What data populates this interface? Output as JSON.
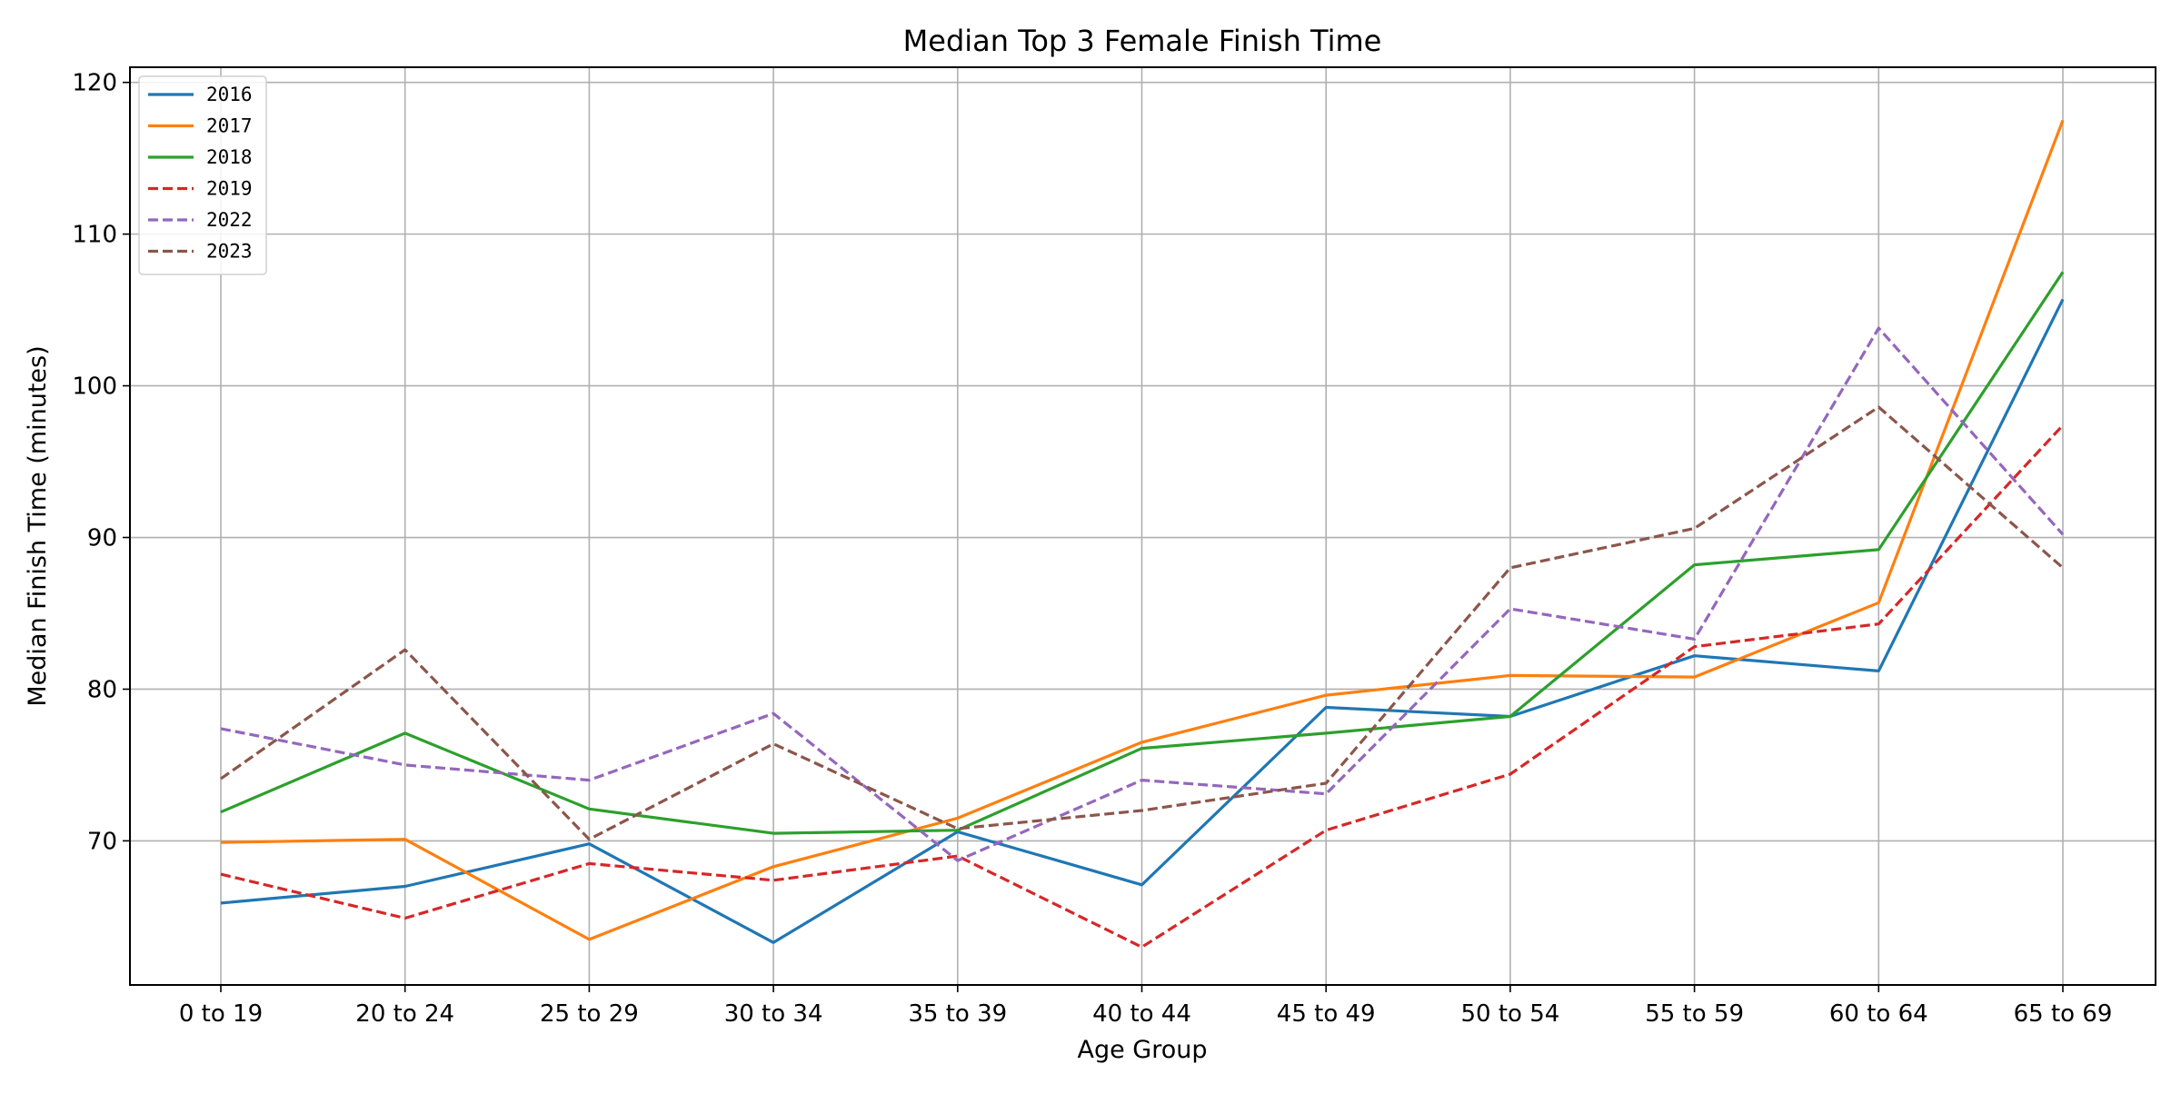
{
  "chart_data": {
    "type": "line",
    "title": "Median Top 3 Female Finish Time",
    "xlabel": "Age Group",
    "ylabel": "Median Finish Time (minutes)",
    "categories": [
      "0 to 19",
      "20 to 24",
      "25 to 29",
      "30 to 34",
      "35 to 39",
      "40 to 44",
      "45 to 49",
      "50 to 54",
      "55 to 59",
      "60 to 64",
      "65 to 69"
    ],
    "ylim": [
      60.5,
      121
    ],
    "yticks": [
      70,
      80,
      90,
      100,
      110,
      120
    ],
    "grid": true,
    "legend_position": "top-left",
    "series": [
      {
        "name": "2016",
        "color": "#1f77b4",
        "style": "solid",
        "values": [
          65.9,
          67.0,
          69.8,
          63.3,
          70.6,
          67.1,
          78.8,
          78.2,
          82.2,
          81.2,
          105.7
        ]
      },
      {
        "name": "2017",
        "color": "#ff7f0e",
        "style": "solid",
        "values": [
          69.9,
          70.1,
          63.5,
          68.3,
          71.5,
          76.5,
          79.6,
          80.9,
          80.8,
          85.7,
          117.5
        ]
      },
      {
        "name": "2018",
        "color": "#2ca02c",
        "style": "solid",
        "values": [
          71.9,
          77.1,
          72.1,
          70.5,
          70.7,
          76.1,
          77.1,
          78.2,
          88.2,
          89.2,
          107.5
        ]
      },
      {
        "name": "2019",
        "color": "#d62728",
        "style": "dashed",
        "values": [
          67.8,
          64.9,
          68.5,
          67.4,
          69.0,
          63.0,
          70.7,
          74.4,
          82.8,
          84.3,
          97.4
        ]
      },
      {
        "name": "2022",
        "color": "#9467bd",
        "style": "dashed",
        "values": [
          77.4,
          75.0,
          74.0,
          78.4,
          68.7,
          74.0,
          73.1,
          85.3,
          83.3,
          103.8,
          90.2
        ]
      },
      {
        "name": "2023",
        "color": "#8c564b",
        "style": "dashed",
        "values": [
          74.1,
          82.6,
          70.1,
          76.4,
          70.8,
          72.0,
          73.8,
          88.0,
          90.6,
          98.6,
          88.0
        ]
      }
    ]
  }
}
